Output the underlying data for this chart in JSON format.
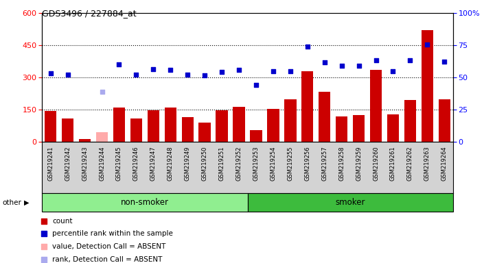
{
  "title": "GDS3496 / 227884_at",
  "samples": [
    "GSM219241",
    "GSM219242",
    "GSM219243",
    "GSM219244",
    "GSM219245",
    "GSM219246",
    "GSM219247",
    "GSM219248",
    "GSM219249",
    "GSM219250",
    "GSM219251",
    "GSM219252",
    "GSM219253",
    "GSM219254",
    "GSM219255",
    "GSM219256",
    "GSM219257",
    "GSM219258",
    "GSM219259",
    "GSM219260",
    "GSM219261",
    "GSM219262",
    "GSM219263",
    "GSM219264"
  ],
  "count_values": [
    145,
    110,
    15,
    null,
    160,
    110,
    148,
    160,
    115,
    90,
    148,
    165,
    55,
    155,
    200,
    330,
    235,
    120,
    125,
    335,
    130,
    195,
    520,
    200
  ],
  "absent_count": [
    null,
    null,
    null,
    45,
    null,
    null,
    null,
    null,
    null,
    null,
    null,
    null,
    null,
    null,
    null,
    null,
    null,
    null,
    null,
    null,
    null,
    null,
    null,
    null
  ],
  "rank_values": [
    320,
    315,
    null,
    null,
    360,
    315,
    340,
    335,
    315,
    310,
    325,
    335,
    265,
    330,
    330,
    445,
    370,
    355,
    355,
    380,
    330,
    380,
    455,
    375
  ],
  "absent_rank": [
    null,
    null,
    null,
    235,
    null,
    null,
    null,
    null,
    null,
    null,
    null,
    null,
    null,
    null,
    null,
    null,
    null,
    null,
    null,
    null,
    null,
    null,
    null,
    null
  ],
  "left_ylim": [
    0,
    600
  ],
  "right_ylim": [
    0,
    100
  ],
  "left_yticks": [
    0,
    150,
    300,
    450,
    600
  ],
  "right_yticks": [
    0,
    25,
    50,
    75,
    100
  ],
  "bar_color": "#cc0000",
  "dot_color": "#0000cc",
  "absent_bar_color": "#ffaaaa",
  "absent_dot_color": "#aaaaee",
  "bg_color": "#d3d3d3",
  "non_smoker_color": "#90ee90",
  "smoker_color": "#3dbb3d",
  "nonsmoker_count": 12,
  "total_count": 24
}
